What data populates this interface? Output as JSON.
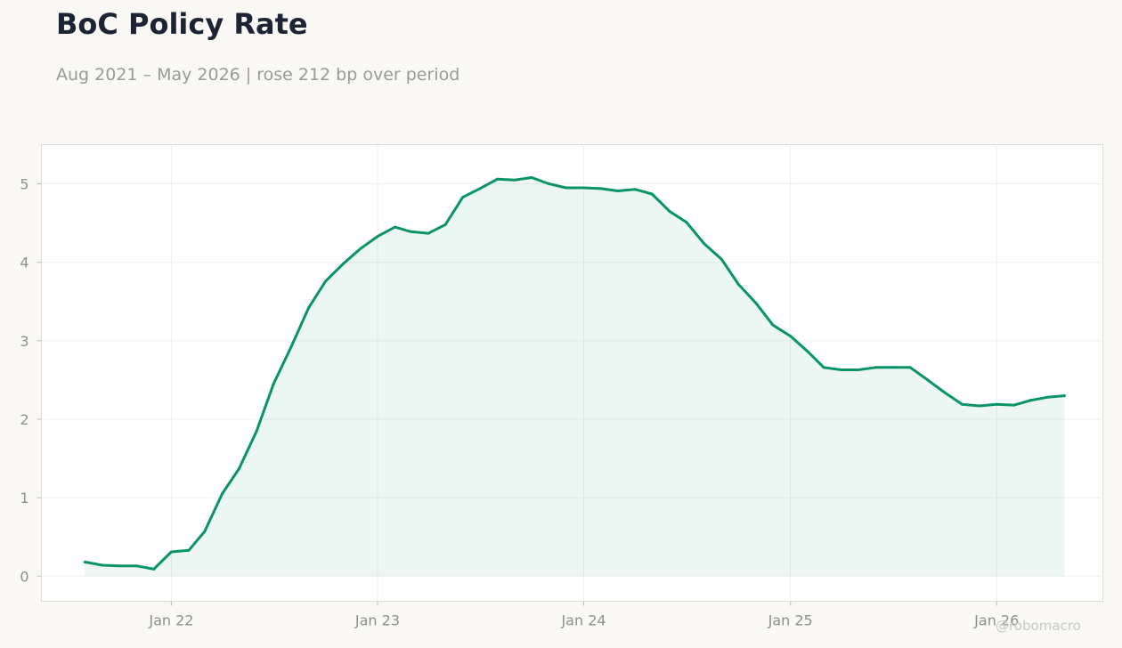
{
  "title": "BoC Policy Rate",
  "subtitle": "Aug 2021 – May 2026 | rose 212 bp over period",
  "watermark": "@robomacro",
  "colors": {
    "background": "#f9f8f5",
    "plot_background": "#ffffff",
    "line": "#0a9466",
    "fill": "#0a9466",
    "grid": "#efefec",
    "axis_text": "#8f8f88",
    "title": "#1c2333"
  },
  "chart_data": {
    "type": "area",
    "title": "BoC Policy Rate",
    "subtitle": "Aug 2021 – May 2026 | rose 212 bp over period",
    "xlabel": "",
    "ylabel": "",
    "grid": true,
    "ylim": [
      -0.32,
      5.5
    ],
    "xlim": [
      "2021-05-16",
      "2026-07-08"
    ],
    "x_ticks": [
      {
        "date": "2022-01-01",
        "label": "Jan 22"
      },
      {
        "date": "2023-01-01",
        "label": "Jan 23"
      },
      {
        "date": "2024-01-01",
        "label": "Jan 24"
      },
      {
        "date": "2025-01-01",
        "label": "Jan 25"
      },
      {
        "date": "2026-01-01",
        "label": "Jan 26"
      }
    ],
    "y_ticks": [
      0,
      1,
      2,
      3,
      4,
      5
    ],
    "series": [
      {
        "x": [
          "2021-08-01",
          "2021-09-01",
          "2021-10-01",
          "2021-11-01",
          "2021-12-01",
          "2022-01-01",
          "2022-02-01",
          "2022-03-01",
          "2022-04-01",
          "2022-05-01",
          "2022-06-01",
          "2022-07-01",
          "2022-08-01",
          "2022-09-01",
          "2022-10-01",
          "2022-11-01",
          "2022-12-01",
          "2023-01-01",
          "2023-02-01",
          "2023-03-01",
          "2023-04-01",
          "2023-05-01",
          "2023-06-01",
          "2023-07-01",
          "2023-08-01",
          "2023-09-01",
          "2023-10-01",
          "2023-11-01",
          "2023-12-01",
          "2024-01-01",
          "2024-02-01",
          "2024-03-01",
          "2024-04-01",
          "2024-05-01",
          "2024-06-01",
          "2024-07-01",
          "2024-08-01",
          "2024-09-01",
          "2024-10-01",
          "2024-11-01",
          "2024-12-01",
          "2025-01-01",
          "2025-02-01",
          "2025-03-01",
          "2025-04-01",
          "2025-05-01",
          "2025-06-01",
          "2025-07-01",
          "2025-08-01",
          "2025-09-01",
          "2025-10-01",
          "2025-11-01",
          "2025-12-01",
          "2026-01-01",
          "2026-02-01",
          "2026-03-01",
          "2026-04-01",
          "2026-05-01"
        ],
        "values": [
          0.18,
          0.14,
          0.13,
          0.13,
          0.09,
          0.31,
          0.33,
          0.57,
          1.05,
          1.37,
          1.85,
          2.45,
          2.92,
          3.42,
          3.76,
          3.98,
          4.17,
          4.33,
          4.45,
          4.39,
          4.37,
          4.48,
          4.83,
          4.94,
          5.06,
          5.05,
          5.08,
          5.0,
          4.95,
          4.95,
          4.94,
          4.91,
          4.93,
          4.87,
          4.65,
          4.51,
          4.24,
          4.04,
          3.72,
          3.48,
          3.2,
          3.06,
          2.86,
          2.66,
          2.63,
          2.63,
          2.66,
          2.66,
          2.66,
          2.5,
          2.34,
          2.19,
          2.17,
          2.19,
          2.18,
          2.24,
          2.28,
          2.3
        ]
      }
    ]
  }
}
